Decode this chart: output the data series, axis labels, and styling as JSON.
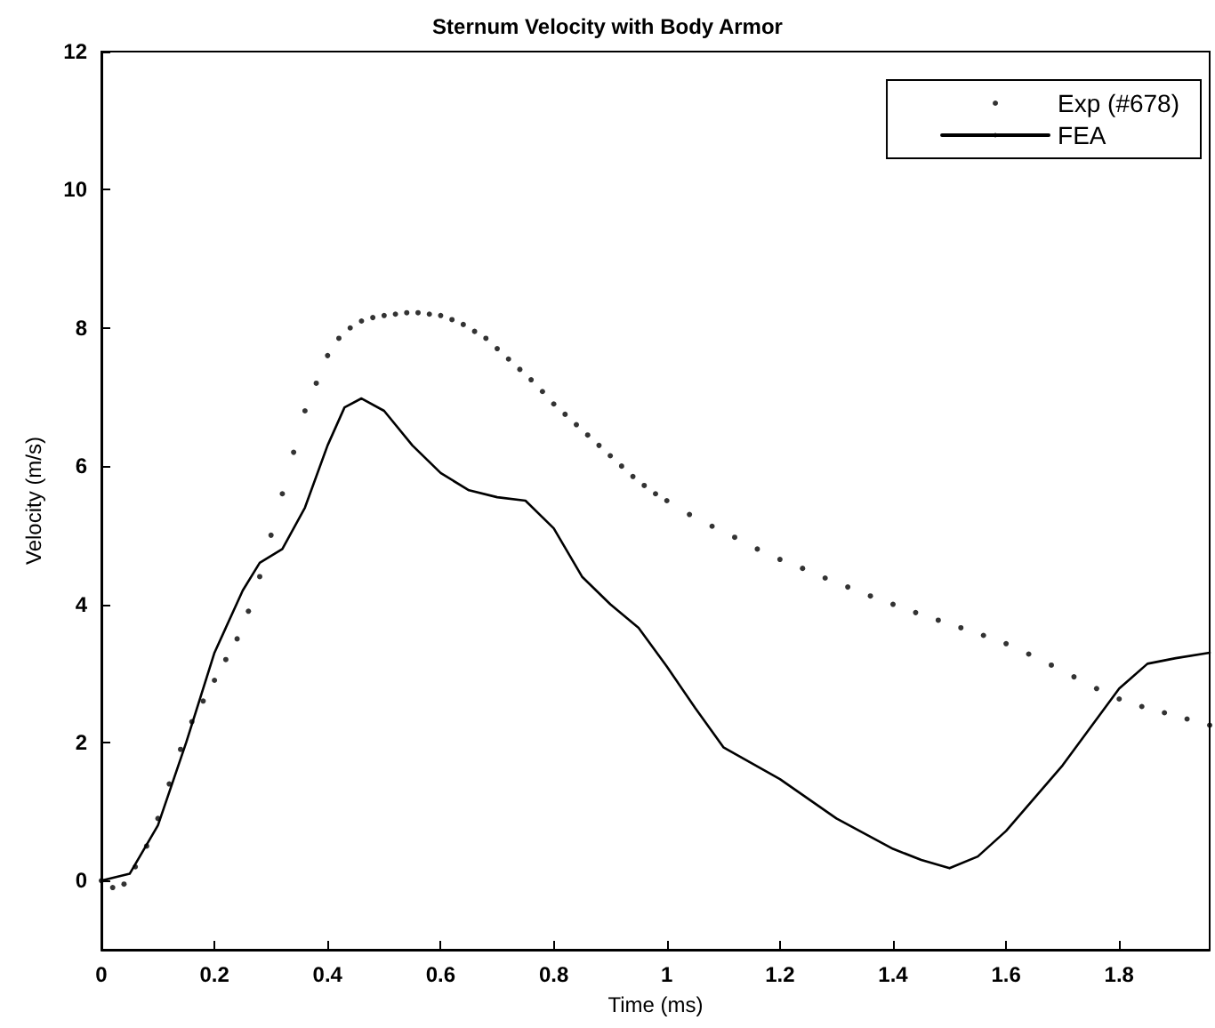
{
  "chart_data": {
    "type": "line",
    "title": "Sternum Velocity with Body Armor",
    "xlabel": "Time (ms)",
    "ylabel": "Velocity (m/s)",
    "xlim": [
      0,
      1.96
    ],
    "xticks": [
      0,
      0.2,
      0.4,
      0.6,
      0.8,
      1,
      1.2,
      1.4,
      1.6,
      1.8
    ],
    "ylim": [
      -1,
      12
    ],
    "yticks": [
      0,
      2,
      4,
      6,
      8,
      10,
      12
    ],
    "grid": false,
    "legend": "top right",
    "series": [
      {
        "name": "Exp (#678)",
        "type": "scatter",
        "marker": "circle",
        "color": "#000000",
        "x": [
          0,
          0.02,
          0.04,
          0.06,
          0.08,
          0.1,
          0.12,
          0.14,
          0.16,
          0.18,
          0.2,
          0.22,
          0.24,
          0.26,
          0.28,
          0.3,
          0.32,
          0.34,
          0.36,
          0.38,
          0.4,
          0.42,
          0.44,
          0.46,
          0.48,
          0.5,
          0.52,
          0.54,
          0.56,
          0.58,
          0.6,
          0.62,
          0.64,
          0.66,
          0.68,
          0.7,
          0.72,
          0.74,
          0.76,
          0.78,
          0.8,
          0.82,
          0.84,
          0.86,
          0.88,
          0.9,
          0.92,
          0.94,
          0.96,
          0.98,
          1.0,
          1.04,
          1.08,
          1.12,
          1.16,
          1.2,
          1.24,
          1.28,
          1.32,
          1.36,
          1.4,
          1.44,
          1.48,
          1.52,
          1.56,
          1.6,
          1.64,
          1.68,
          1.72,
          1.76,
          1.8,
          1.84,
          1.88,
          1.92,
          1.96
        ],
        "values": [
          0,
          -0.1,
          -0.05,
          0.2,
          0.5,
          0.9,
          1.4,
          1.9,
          2.3,
          2.6,
          2.9,
          3.2,
          3.5,
          3.9,
          4.4,
          5.0,
          5.6,
          6.2,
          6.8,
          7.2,
          7.6,
          7.85,
          8.0,
          8.1,
          8.15,
          8.18,
          8.2,
          8.22,
          8.22,
          8.2,
          8.18,
          8.12,
          8.05,
          7.95,
          7.85,
          7.7,
          7.55,
          7.4,
          7.25,
          7.08,
          6.9,
          6.75,
          6.6,
          6.45,
          6.3,
          6.15,
          6.0,
          5.85,
          5.72,
          5.6,
          5.5,
          5.3,
          5.13,
          4.97,
          4.8,
          4.65,
          4.52,
          4.38,
          4.25,
          4.12,
          4.0,
          3.88,
          3.77,
          3.66,
          3.55,
          3.43,
          3.28,
          3.12,
          2.95,
          2.78,
          2.63,
          2.52,
          2.43,
          2.34,
          2.25
        ]
      },
      {
        "name": "FEA",
        "marker": "none",
        "line_style": "solid",
        "color": "#000000",
        "x": [
          0,
          0.05,
          0.1,
          0.15,
          0.2,
          0.25,
          0.28,
          0.32,
          0.36,
          0.4,
          0.43,
          0.46,
          0.5,
          0.55,
          0.6,
          0.65,
          0.7,
          0.75,
          0.8,
          0.85,
          0.9,
          0.95,
          1.0,
          1.05,
          1.1,
          1.2,
          1.3,
          1.4,
          1.45,
          1.5,
          1.55,
          1.6,
          1.7,
          1.8,
          1.85,
          1.9,
          1.96
        ],
        "values": [
          0,
          0.1,
          0.8,
          2.0,
          3.3,
          4.2,
          4.6,
          4.8,
          5.4,
          6.3,
          6.85,
          6.98,
          6.8,
          6.3,
          5.9,
          5.65,
          5.55,
          5.5,
          5.1,
          4.4,
          4.0,
          3.66,
          3.1,
          2.5,
          1.93,
          1.47,
          0.9,
          0.46,
          0.3,
          0.18,
          0.35,
          0.72,
          1.67,
          2.78,
          3.14,
          3.22,
          3.3
        ]
      }
    ]
  }
}
